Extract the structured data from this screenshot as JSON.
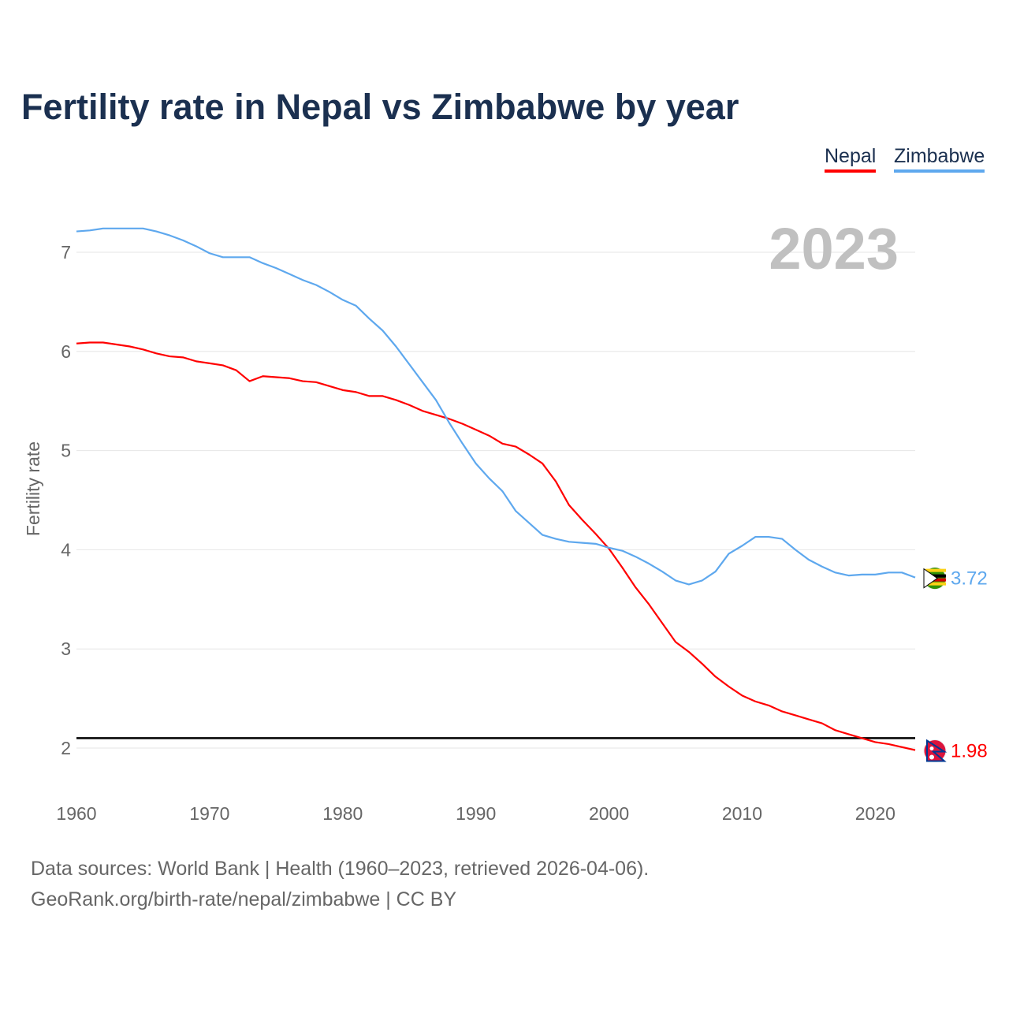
{
  "chart_data": {
    "type": "line",
    "title": "Fertility rate in Nepal vs Zimbabwe by year",
    "xlabel": "",
    "ylabel": "Fertility rate",
    "xlim": [
      1960,
      2023
    ],
    "ylim": [
      1.5,
      7.5
    ],
    "x_ticks": [
      1960,
      1970,
      1980,
      1990,
      2000,
      2010,
      2020
    ],
    "y_ticks": [
      2,
      3,
      4,
      5,
      6,
      7
    ],
    "grid": true,
    "legend_position": "top-right",
    "year_label": "2023",
    "reference_line": 2.1,
    "x": [
      1960,
      1961,
      1962,
      1963,
      1964,
      1965,
      1966,
      1967,
      1968,
      1969,
      1970,
      1971,
      1972,
      1973,
      1974,
      1975,
      1976,
      1977,
      1978,
      1979,
      1980,
      1981,
      1982,
      1983,
      1984,
      1985,
      1986,
      1987,
      1988,
      1989,
      1990,
      1991,
      1992,
      1993,
      1994,
      1995,
      1996,
      1997,
      1998,
      1999,
      2000,
      2001,
      2002,
      2003,
      2004,
      2005,
      2006,
      2007,
      2008,
      2009,
      2010,
      2011,
      2012,
      2013,
      2014,
      2015,
      2016,
      2017,
      2018,
      2019,
      2020,
      2021,
      2022,
      2023
    ],
    "series": [
      {
        "name": "Nepal",
        "color": "#ff0000",
        "end_label": "1.98",
        "values": [
          6.08,
          6.09,
          6.09,
          6.07,
          6.05,
          6.02,
          5.98,
          5.95,
          5.94,
          5.9,
          5.88,
          5.86,
          5.81,
          5.7,
          5.75,
          5.74,
          5.73,
          5.7,
          5.69,
          5.65,
          5.61,
          5.59,
          5.55,
          5.55,
          5.51,
          5.46,
          5.4,
          5.36,
          5.32,
          5.27,
          5.21,
          5.15,
          5.07,
          5.04,
          4.96,
          4.87,
          4.69,
          4.45,
          4.3,
          4.16,
          4.01,
          3.82,
          3.62,
          3.45,
          3.26,
          3.07,
          2.97,
          2.85,
          2.72,
          2.62,
          2.53,
          2.47,
          2.43,
          2.37,
          2.33,
          2.29,
          2.25,
          2.18,
          2.14,
          2.1,
          2.06,
          2.04,
          2.01,
          1.98
        ]
      },
      {
        "name": "Zimbabwe",
        "color": "#5ea8ee",
        "end_label": "3.72",
        "values": [
          7.21,
          7.22,
          7.24,
          7.24,
          7.24,
          7.24,
          7.21,
          7.17,
          7.12,
          7.06,
          6.99,
          6.95,
          6.95,
          6.95,
          6.89,
          6.84,
          6.78,
          6.72,
          6.67,
          6.6,
          6.52,
          6.46,
          6.33,
          6.21,
          6.05,
          5.87,
          5.69,
          5.51,
          5.28,
          5.07,
          4.87,
          4.72,
          4.59,
          4.39,
          4.27,
          4.15,
          4.11,
          4.08,
          4.07,
          4.06,
          4.02,
          3.99,
          3.93,
          3.86,
          3.78,
          3.69,
          3.65,
          3.69,
          3.78,
          3.96,
          4.04,
          4.13,
          4.13,
          4.11,
          4.0,
          3.9,
          3.83,
          3.77,
          3.74,
          3.75,
          3.75,
          3.77,
          3.77,
          3.72
        ]
      }
    ]
  },
  "footer": {
    "line1": "Data sources: World Bank | Health (1960–2023, retrieved 2026-04-06).",
    "line2": "GeoRank.org/birth-rate/nepal/zimbabwe | CC BY"
  }
}
